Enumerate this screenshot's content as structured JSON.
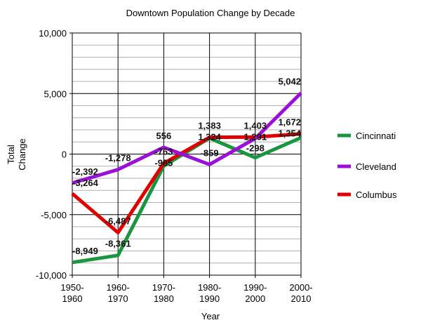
{
  "chart_data": {
    "type": "line",
    "title": "Downtown Population Change by Decade",
    "xlabel": "Year",
    "ylabel": [
      "Total",
      "Change"
    ],
    "categories": [
      [
        "1950-",
        "1960"
      ],
      [
        "1960-",
        "1970"
      ],
      [
        "1970-",
        "1980"
      ],
      [
        "1980-",
        "1990"
      ],
      [
        "1990-",
        "2000"
      ],
      [
        "2000-",
        "2010"
      ]
    ],
    "ylim": [
      -10000,
      10000
    ],
    "yticks": [
      {
        "v": 10000,
        "l": "10,000"
      },
      {
        "v": 5000,
        "l": "5,000"
      },
      {
        "v": 0,
        "l": "0"
      },
      {
        "v": -5000,
        "l": "-5,000"
      },
      {
        "v": -10000,
        "l": "-10,000"
      }
    ],
    "legend_position": "right",
    "series": [
      {
        "name": "Cincinnati",
        "color": "#1a9641",
        "values": [
          -8949,
          -8361,
          -985,
          1324,
          -298,
          1354
        ],
        "labels": [
          "-8,949",
          "-8,361",
          "-985",
          "1,324",
          "-298",
          "1,354"
        ]
      },
      {
        "name": "Cleveland",
        "color": "#9b10d8",
        "values": [
          -2392,
          -1278,
          556,
          -859,
          1291,
          5042
        ],
        "labels": [
          "-2,392",
          "-1,278",
          "556",
          "-859",
          "1,291",
          "5,042"
        ]
      },
      {
        "name": "Columbus",
        "color": "#e00000",
        "values": [
          -3264,
          -6487,
          -763,
          1383,
          1403,
          1672
        ],
        "labels": [
          "-3,264",
          "-6,487",
          "-763",
          "1,383",
          "1,403",
          "1,672"
        ]
      }
    ]
  }
}
